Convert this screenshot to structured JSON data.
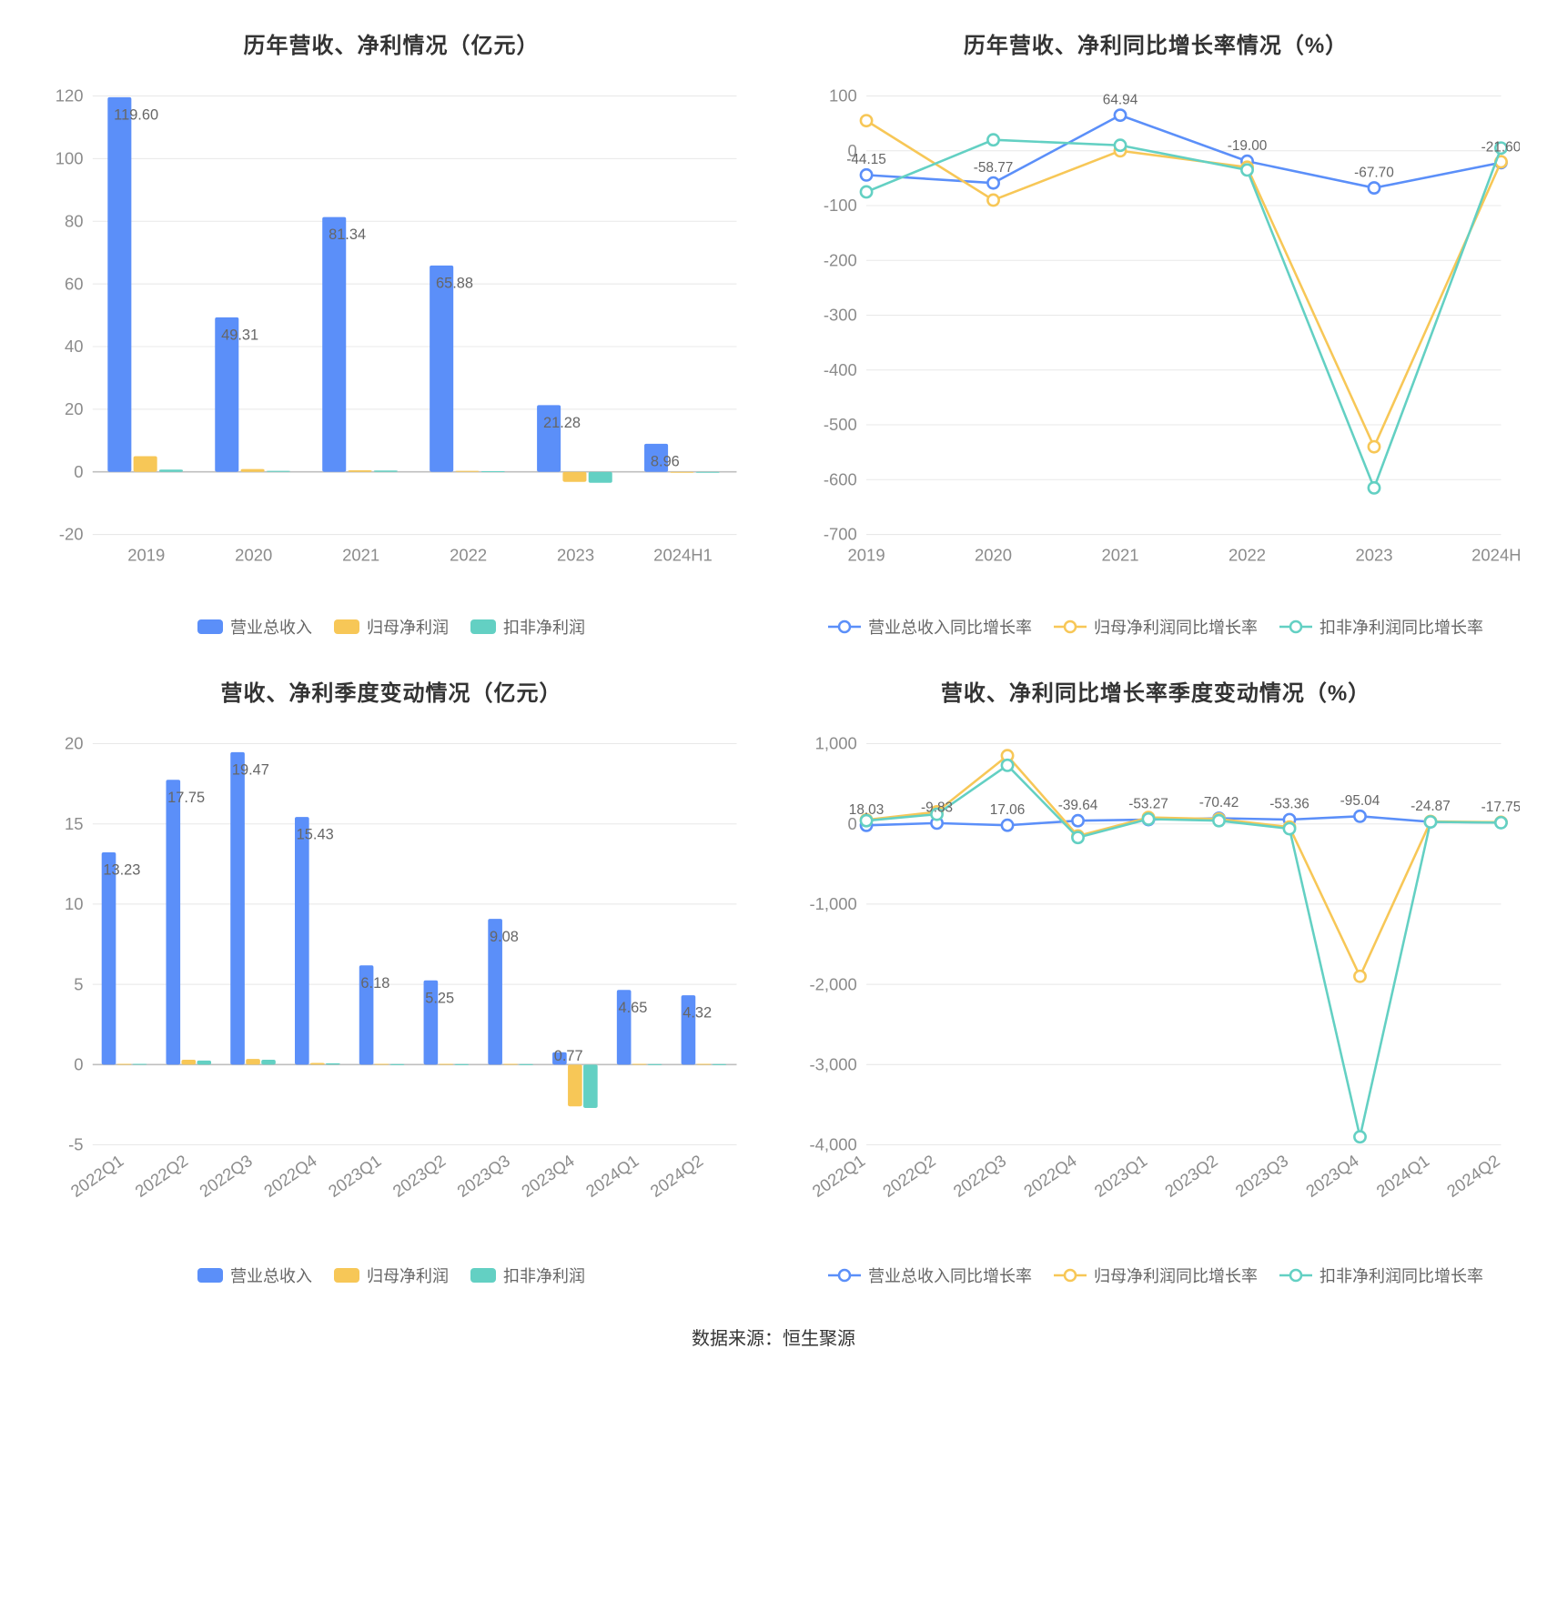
{
  "footer": "数据来源：恒生聚源",
  "colors": {
    "series_blue": "#5b8ff9",
    "series_yellow": "#f7c757",
    "series_teal": "#63d0c3",
    "axis": "#bfbfbf",
    "grid": "#e8e8e8",
    "tick_text": "#8c8c8c",
    "label_text": "#666666",
    "title": "#333333",
    "background": "#ffffff"
  },
  "typography": {
    "title_fontsize": 24,
    "axis_fontsize": 18,
    "legend_fontsize": 18,
    "value_label_fontsize": 16
  },
  "charts": {
    "tl": {
      "title": "历年营收、净利情况（亿元）",
      "type": "bar",
      "categories": [
        "2019",
        "2020",
        "2021",
        "2022",
        "2023",
        "2024H1"
      ],
      "series": [
        {
          "name": "营业总收入",
          "color": "#5b8ff9",
          "values": [
            119.6,
            49.31,
            81.34,
            65.88,
            21.28,
            8.96
          ],
          "show_labels": true
        },
        {
          "name": "归母净利润",
          "color": "#f7c757",
          "values": [
            5.0,
            0.9,
            0.5,
            0.3,
            -3.2,
            -0.2
          ],
          "show_labels": false
        },
        {
          "name": "扣非净利润",
          "color": "#63d0c3",
          "values": [
            0.7,
            0.3,
            0.4,
            0.2,
            -3.5,
            -0.2
          ],
          "show_labels": false
        }
      ],
      "ylim": [
        -20,
        120
      ],
      "ytick_step": 20,
      "bar_group_width": 0.72,
      "legend": [
        "营业总收入",
        "归母净利润",
        "扣非净利润"
      ],
      "legend_style": "bar"
    },
    "tr": {
      "title": "历年营收、净利同比增长率情况（%）",
      "type": "line",
      "categories": [
        "2019",
        "2020",
        "2021",
        "2022",
        "2023",
        "2024H1"
      ],
      "series": [
        {
          "name": "营业总收入同比增长率",
          "color": "#5b8ff9",
          "values": [
            -44.15,
            -58.77,
            64.94,
            -19.0,
            -67.7,
            -21.6
          ],
          "show_labels": true
        },
        {
          "name": "归母净利润同比增长率",
          "color": "#f7c757",
          "values": [
            55,
            -90,
            0,
            -30,
            -540,
            -20
          ],
          "show_labels": false
        },
        {
          "name": "扣非净利润同比增长率",
          "color": "#63d0c3",
          "values": [
            -75,
            20,
            10,
            -35,
            -615,
            5
          ],
          "show_labels": false
        }
      ],
      "ylim": [
        -700,
        100
      ],
      "ytick_step": 100,
      "legend": [
        "营业总收入同比增长率",
        "归母净利润同比增长率",
        "扣非净利润同比增长率"
      ],
      "legend_style": "line"
    },
    "bl": {
      "title": "营收、净利季度变动情况（亿元）",
      "type": "bar",
      "categories": [
        "2022Q1",
        "2022Q2",
        "2022Q3",
        "2022Q4",
        "2023Q1",
        "2023Q2",
        "2023Q3",
        "2023Q4",
        "2024Q1",
        "2024Q2"
      ],
      "series": [
        {
          "name": "营业总收入",
          "color": "#5b8ff9",
          "values": [
            13.23,
            17.75,
            19.47,
            15.43,
            6.18,
            5.25,
            9.08,
            0.77,
            4.65,
            4.32
          ],
          "show_labels": true
        },
        {
          "name": "归母净利润",
          "color": "#f7c757",
          "values": [
            0.05,
            0.3,
            0.35,
            0.1,
            0.05,
            0.05,
            0.05,
            -2.6,
            0.05,
            0.05
          ],
          "show_labels": false
        },
        {
          "name": "扣非净利润",
          "color": "#63d0c3",
          "values": [
            0.05,
            0.25,
            0.3,
            0.08,
            0.03,
            0.03,
            0.03,
            -2.7,
            0.03,
            0.03
          ],
          "show_labels": false
        }
      ],
      "ylim": [
        -5,
        20
      ],
      "ytick_step": 5,
      "bar_group_width": 0.72,
      "rotate_xlabels": -35,
      "legend": [
        "营业总收入",
        "归母净利润",
        "扣非净利润"
      ],
      "legend_style": "bar"
    },
    "br": {
      "title": "营收、净利同比增长率季度变动情况（%）",
      "type": "line",
      "categories": [
        "2022Q1",
        "2022Q2",
        "2022Q3",
        "2022Q4",
        "2023Q1",
        "2023Q2",
        "2023Q3",
        "2023Q4",
        "2024Q1",
        "2024Q2"
      ],
      "series": [
        {
          "name": "营业总收入同比增长率",
          "color": "#5b8ff9",
          "values": [
            -18.03,
            9.83,
            -17.06,
            39.64,
            53.27,
            70.42,
            53.36,
            95.04,
            24.87,
            17.75
          ],
          "show_labels": true,
          "label_scale": -1
        },
        {
          "name": "归母净利润同比增长率",
          "color": "#f7c757",
          "values": [
            50,
            150,
            850,
            -150,
            80,
            60,
            -40,
            -1900,
            30,
            20
          ],
          "show_labels": false
        },
        {
          "name": "扣非净利润同比增长率",
          "color": "#63d0c3",
          "values": [
            40,
            120,
            730,
            -170,
            60,
            40,
            -60,
            -3900,
            25,
            15
          ],
          "show_labels": false
        }
      ],
      "ylim": [
        -4000,
        1000
      ],
      "ytick_step": 1000,
      "rotate_xlabels": -35,
      "legend": [
        "营业总收入同比增长率",
        "归母净利润同比增长率",
        "扣非净利润同比增长率"
      ],
      "legend_style": "line"
    }
  }
}
